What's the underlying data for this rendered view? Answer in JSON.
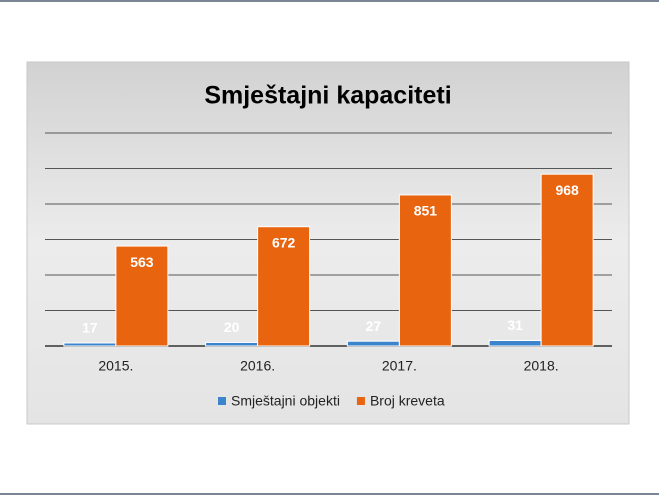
{
  "chart_data": {
    "type": "bar",
    "title": "Smještajni kapaciteti",
    "categories": [
      "2015.",
      "2016.",
      "2017.",
      "2018."
    ],
    "series": [
      {
        "name": "Smještajni objekti",
        "color": "#3c84cc",
        "values": [
          17,
          20,
          27,
          31
        ]
      },
      {
        "name": "Broj kreveta",
        "color": "#e8640f",
        "values": [
          563,
          672,
          851,
          968
        ]
      }
    ],
    "ylim": [
      0,
      1200
    ],
    "yticks": [
      0,
      200,
      400,
      600,
      800,
      1000,
      1200
    ],
    "grid": true,
    "legend": "bottom"
  }
}
